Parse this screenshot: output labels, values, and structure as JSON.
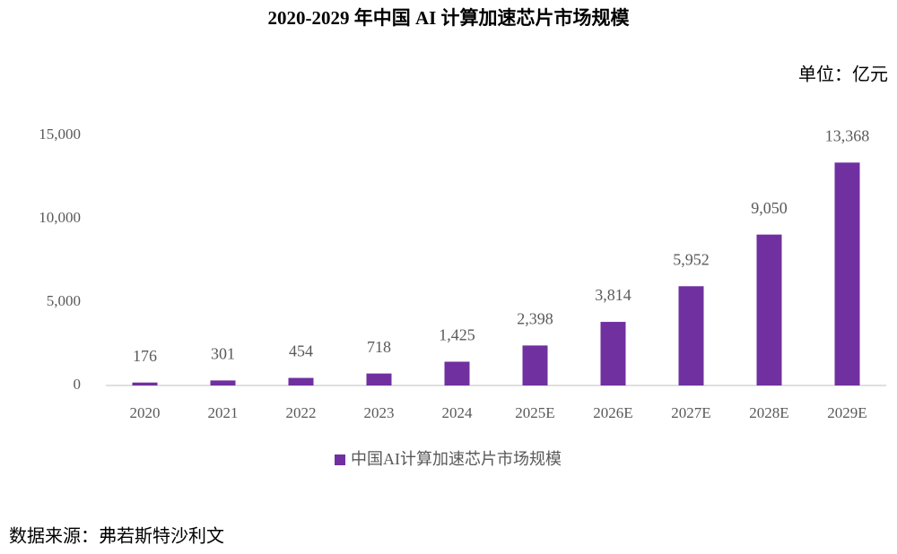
{
  "chart_data": {
    "type": "bar",
    "title": "2020-2029 年中国 AI 计算加速芯片市场规模",
    "unit": "单位：亿元",
    "categories": [
      "2020",
      "2021",
      "2022",
      "2023",
      "2024",
      "2025E",
      "2026E",
      "2027E",
      "2028E",
      "2029E"
    ],
    "series": [
      {
        "name": "中国AI计算加速芯片市场规模",
        "color": "#7030a0",
        "values": [
          176,
          301,
          454,
          718,
          1425,
          2398,
          3814,
          5952,
          9050,
          13368
        ],
        "value_labels": [
          "176",
          "301",
          "454",
          "718",
          "1,425",
          "2,398",
          "3,814",
          "5,952",
          "9,050",
          "13,368"
        ]
      }
    ],
    "ylim": [
      0,
      15000
    ],
    "yticks": [
      0,
      {
        "value": 5000,
        "label": "5,000"
      },
      {
        "value": 10000,
        "label": "10,000"
      },
      {
        "value": 15000,
        "label": "15,000"
      }
    ],
    "grid": false,
    "legend": "bottom",
    "source": "数据来源：弗若斯特沙利文"
  }
}
